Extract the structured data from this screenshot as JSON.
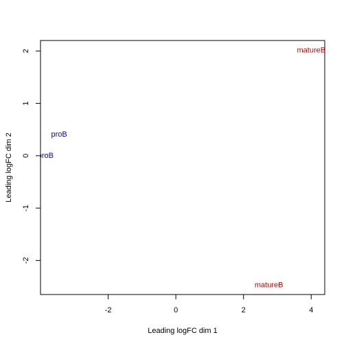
{
  "chart_data": {
    "type": "scatter",
    "xlabel": "Leading logFC dim 1",
    "ylabel": "Leading logFC dim 2",
    "xlim": [
      -4.0,
      4.4
    ],
    "ylim": [
      -2.65,
      2.2
    ],
    "xticks": [
      -2,
      0,
      2,
      4
    ],
    "yticks": [
      -2,
      -1,
      0,
      1,
      2
    ],
    "grid": false,
    "points": [
      {
        "label": "proB",
        "x": -3.45,
        "y": 0.42,
        "color": "#0000cc"
      },
      {
        "label": "proB",
        "x": -3.85,
        "y": 0.01,
        "color": "#0000cc"
      },
      {
        "label": "matureB",
        "x": 4.0,
        "y": 2.02,
        "color": "#cc0000"
      },
      {
        "label": "matureB",
        "x": 2.75,
        "y": -2.46,
        "color": "#cc0000"
      }
    ]
  }
}
